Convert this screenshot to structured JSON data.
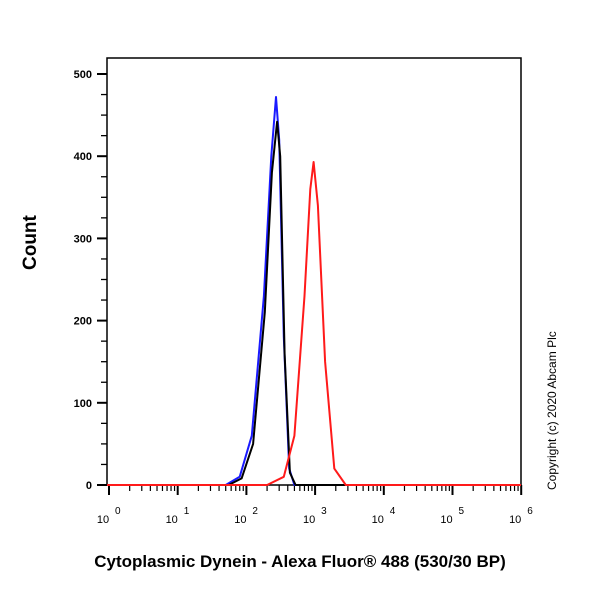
{
  "chart_data": {
    "type": "line",
    "title": "",
    "xlabel": "Cytoplasmic Dynein - Alexa Fluor® 488 (530/30 BP)",
    "ylabel": "Count",
    "xscale": "log",
    "xlim": [
      1,
      1000000
    ],
    "ylim": [
      0,
      520
    ],
    "x_ticks": [
      "10^0",
      "10^1",
      "10^2",
      "10^3",
      "10^4",
      "10^5",
      "10^6"
    ],
    "y_ticks": [
      0,
      100,
      200,
      300,
      400,
      500
    ],
    "grid": false,
    "legend": null,
    "series": [
      {
        "name": "blue",
        "color": "#1a1aff",
        "peak_x": 270,
        "peak_y": 472,
        "x": [
          50,
          80,
          120,
          180,
          230,
          270,
          300,
          350,
          420,
          500
        ],
        "y": [
          0,
          10,
          60,
          230,
          400,
          472,
          420,
          180,
          20,
          0
        ]
      },
      {
        "name": "black",
        "color": "#000000",
        "peak_x": 280,
        "peak_y": 442,
        "x": [
          55,
          85,
          125,
          185,
          235,
          280,
          310,
          360,
          430,
          520
        ],
        "y": [
          0,
          8,
          50,
          210,
          380,
          442,
          400,
          160,
          15,
          0
        ]
      },
      {
        "name": "red",
        "color": "#ff1a1a",
        "peak_x": 950,
        "peak_y": 393,
        "x": [
          200,
          350,
          500,
          700,
          850,
          950,
          1100,
          1400,
          1900,
          2800
        ],
        "y": [
          0,
          10,
          60,
          230,
          360,
          393,
          340,
          150,
          20,
          0
        ]
      }
    ],
    "annotations": [
      "Copyright (c) 2020 Abcam Plc"
    ]
  },
  "labels": {
    "ylabel": "Count",
    "xlabel": "Cytoplasmic Dynein - Alexa Fluor® 488 (530/30 BP)",
    "copyright": "Copyright (c) 2020 Abcam Plc",
    "y_ticks": [
      "0",
      "100",
      "200",
      "300",
      "400",
      "500"
    ]
  }
}
